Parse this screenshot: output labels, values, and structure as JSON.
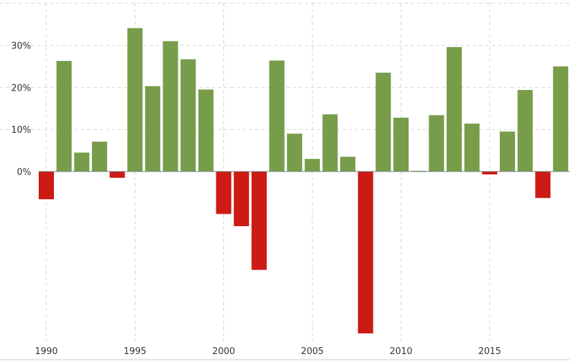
{
  "chart_data": {
    "type": "bar",
    "x": [
      1990,
      1991,
      1992,
      1993,
      1994,
      1995,
      1996,
      1997,
      1998,
      1999,
      2000,
      2001,
      2002,
      2003,
      2004,
      2005,
      2006,
      2007,
      2008,
      2009,
      2010,
      2011,
      2012,
      2013,
      2014,
      2015,
      2016,
      2017,
      2018,
      2019
    ],
    "values": [
      -6.6,
      26.3,
      4.5,
      7.1,
      -1.5,
      34.1,
      20.3,
      31.0,
      26.7,
      19.5,
      -10.1,
      -13.0,
      -23.4,
      26.4,
      9.0,
      3.0,
      13.6,
      3.5,
      -38.5,
      23.5,
      12.8,
      0.0,
      13.4,
      29.6,
      11.4,
      -0.7,
      9.5,
      19.4,
      -6.3,
      25.0
    ],
    "xticks": [
      "1990",
      "1995",
      "2000",
      "2005",
      "2010",
      "2015"
    ],
    "yticks": [
      "0%",
      "10%",
      "20%",
      "30%"
    ],
    "ylim": [
      -38.5,
      40
    ],
    "grid": true,
    "colors": {
      "positive": "#789d4a",
      "negative": "#cc1a14",
      "grid": "#d6d6d6"
    }
  }
}
